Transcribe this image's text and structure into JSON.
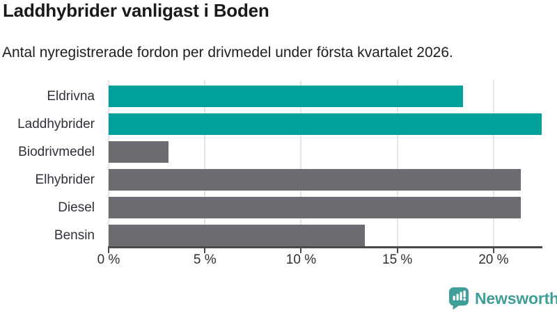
{
  "header": {
    "title": "Laddhybrider vanligast i Boden",
    "subtitle": "Antal nyregistrerade fordon per drivmedel under första kvartalet 2026."
  },
  "chart_data": {
    "type": "bar",
    "orientation": "horizontal",
    "title": "Laddhybrider vanligast i Boden",
    "subtitle": "Antal nyregistrerade fordon per drivmedel under första kvartalet 2026.",
    "xlabel": "",
    "ylabel": "",
    "unit": "%",
    "categories": [
      "Eldrivna",
      "Laddhybrider",
      "Biodrivmedel",
      "Elhybrider",
      "Diesel",
      "Bensin"
    ],
    "values": [
      18.4,
      22.5,
      3.1,
      21.4,
      21.4,
      13.3
    ],
    "bar_colors": [
      "#00a19a",
      "#00a19a",
      "#6c6b71",
      "#6c6b71",
      "#6c6b71",
      "#6c6b71"
    ],
    "highlight_color": "#00a19a",
    "default_color": "#6c6b71",
    "xlim": [
      0,
      22.5
    ],
    "x_ticks": [
      0,
      5,
      10,
      15,
      20
    ],
    "x_tick_labels": [
      "0 %",
      "5 %",
      "10 %",
      "15 %",
      "20 %"
    ],
    "grid": true,
    "gridline_color": "#e4e4e4",
    "axis_color": "#4a4a4a",
    "legend": "none",
    "value_labels": "none"
  },
  "footer": {
    "brand": "Newsworthy",
    "brand_color": "#3f9e97",
    "logo_icon": "newsworthy-speech-bubble-chart-icon"
  }
}
